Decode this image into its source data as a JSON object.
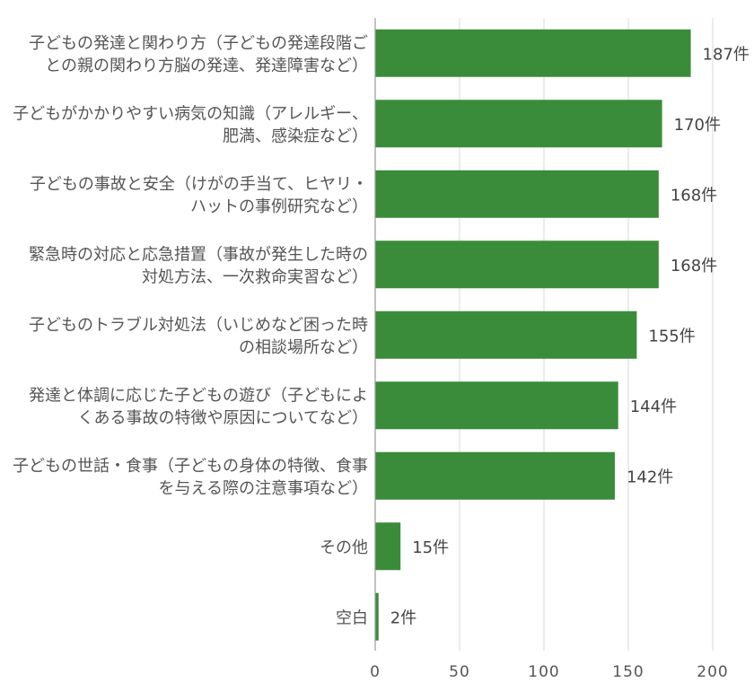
{
  "chart_data": {
    "type": "bar",
    "orientation": "horizontal",
    "categories": [
      [
        "子どもの発達と関わり方（子どもの発達段階ご",
        "との親の関わり方脳の発達、発達障害など）"
      ],
      [
        "子どもがかかりやすい病気の知識（アレルギー、",
        "肥満、感染症など）"
      ],
      [
        "子どもの事故と安全（けがの手当て、ヒヤリ・",
        "ハットの事例研究など）"
      ],
      [
        "緊急時の対応と応急措置（事故が発生した時の",
        "対処方法、一次救命実習など）"
      ],
      [
        "子どものトラブル対処法（いじめなど困った時",
        "の相談場所など）"
      ],
      [
        "発達と体調に応じた子どもの遊び（子どもによ",
        "くある事故の特徴や原因についてなど）"
      ],
      [
        "子どもの世話・食事（子どもの身体の特徴、食事",
        "を与える際の注意事項など）"
      ],
      [
        "その他"
      ],
      [
        "空白"
      ]
    ],
    "values": [
      187,
      170,
      168,
      168,
      155,
      144,
      142,
      15,
      2
    ],
    "value_labels": [
      "187件",
      "170件",
      "168件",
      "168件",
      "155件",
      "144件",
      "142件",
      "15件",
      "2件"
    ],
    "xlim": [
      0,
      210
    ],
    "xticks": [
      0,
      50,
      100,
      150,
      200
    ],
    "xtick_labels": [
      "0",
      "50",
      "100",
      "150",
      "200"
    ],
    "grid": "vertical",
    "legend": "none",
    "bar_color": "#3a8c3a"
  }
}
